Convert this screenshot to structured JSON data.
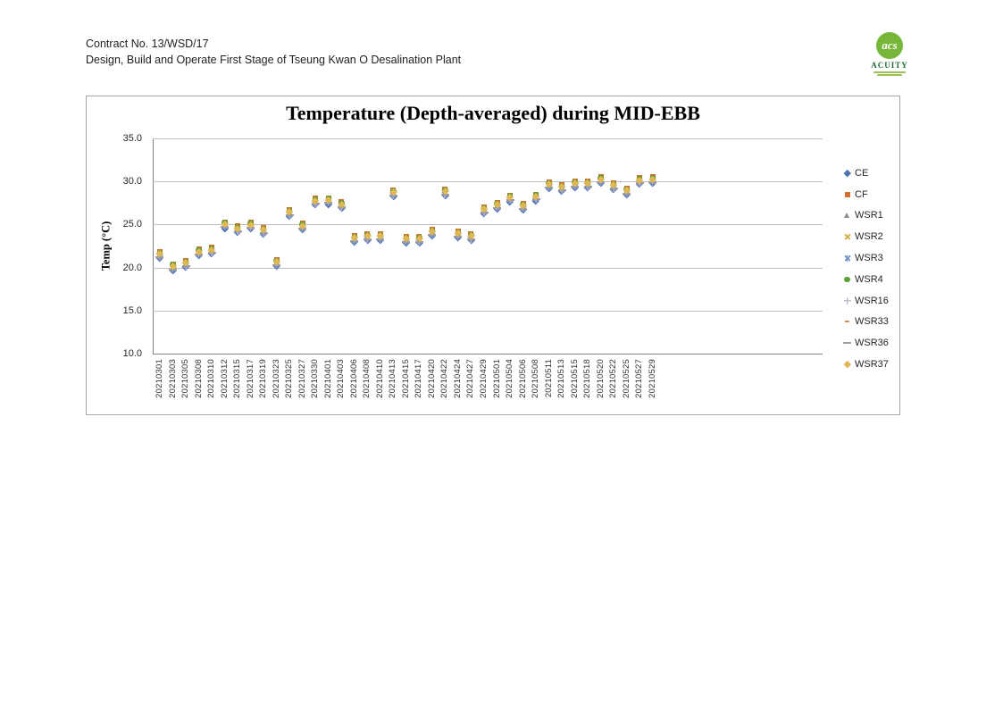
{
  "header": {
    "contract_no": "Contract No. 13/WSD/17",
    "project_title": "Design, Build and Operate First Stage of Tseung Kwan O Desalination Plant"
  },
  "logo": {
    "name": "ACUITY",
    "monogram": "acs",
    "circle_color": "#76b639",
    "name_color": "#1e6b38"
  },
  "chart_data": {
    "type": "scatter",
    "title": "Temperature (Depth-averaged) during MID-EBB",
    "ylabel": "Temp (°C)",
    "ylim": [
      10.0,
      35.0
    ],
    "ytick_labels": [
      "35.0",
      "30.0",
      "25.0",
      "20.0",
      "15.0",
      "10.0"
    ],
    "grid": true,
    "legend_position": "right",
    "categories": [
      "20210301",
      "20210303",
      "20210305",
      "20210308",
      "20210310",
      "20210312",
      "20210315",
      "20210317",
      "20210319",
      "20210323",
      "20210325",
      "20210327",
      "20210330",
      "20210401",
      "20210403",
      "20210406",
      "20210408",
      "20210410",
      "20210413",
      "20210415",
      "20210417",
      "20210420",
      "20210422",
      "20210424",
      "20210427",
      "20210429",
      "20210501",
      "20210504",
      "20210506",
      "20210508",
      "20210511",
      "20210513",
      "20210515",
      "20210518",
      "20210520",
      "20210522",
      "20210525",
      "20210527",
      "20210529"
    ],
    "series": [
      {
        "name": "CE",
        "marker": "diamond",
        "color": "#4a72b2",
        "values": [
          21.1,
          19.7,
          20.1,
          21.4,
          21.6,
          24.6,
          24.1,
          24.5,
          23.9,
          20.2,
          26.0,
          24.4,
          27.3,
          27.4,
          26.9,
          23.0,
          23.2,
          23.2,
          28.3,
          22.9,
          22.9,
          23.7,
          28.4,
          23.5,
          23.2,
          26.3,
          26.8,
          27.7,
          26.7,
          27.8,
          29.2,
          28.9,
          29.3,
          29.3,
          29.8,
          29.1,
          28.5,
          29.7,
          29.8
        ]
      },
      {
        "name": "CF",
        "marker": "square",
        "color": "#d2712e",
        "values": [
          21.8,
          20.4,
          20.8,
          22.1,
          22.3,
          25.3,
          24.8,
          25.2,
          24.6,
          20.9,
          26.7,
          25.1,
          28.0,
          28.1,
          27.6,
          23.7,
          23.9,
          23.9,
          29.0,
          23.6,
          23.6,
          24.4,
          29.1,
          24.2,
          23.9,
          27.0,
          27.5,
          28.4,
          27.4,
          28.5,
          29.9,
          29.6,
          30.0,
          30.0,
          30.5,
          29.8,
          29.2,
          30.4,
          30.5
        ]
      },
      {
        "name": "WSR1",
        "marker": "triangle",
        "color": "#8a8a8a",
        "values": [
          21.4,
          20.0,
          20.4,
          21.7,
          21.9,
          24.9,
          24.4,
          24.8,
          24.2,
          20.5,
          26.3,
          24.7,
          27.6,
          27.7,
          27.2,
          23.3,
          23.5,
          23.5,
          28.6,
          23.2,
          23.2,
          24.0,
          28.7,
          23.8,
          23.5,
          26.6,
          27.1,
          28.0,
          27.0,
          28.1,
          29.5,
          29.2,
          29.6,
          29.6,
          30.1,
          29.4,
          28.8,
          30.0,
          30.1
        ]
      },
      {
        "name": "WSR2",
        "marker": "x",
        "color": "#d4b24a",
        "values": [
          21.5,
          20.1,
          20.5,
          21.8,
          22.0,
          25.0,
          24.5,
          24.9,
          24.3,
          20.6,
          26.4,
          24.8,
          27.7,
          27.8,
          27.3,
          23.4,
          23.6,
          23.6,
          28.7,
          23.3,
          23.3,
          24.1,
          28.8,
          23.9,
          23.6,
          26.7,
          27.2,
          28.1,
          27.1,
          28.2,
          29.6,
          29.3,
          29.7,
          29.7,
          30.2,
          29.5,
          28.9,
          30.1,
          30.2
        ]
      },
      {
        "name": "WSR3",
        "marker": "star",
        "color": "#7296c8",
        "values": [
          21.3,
          19.9,
          20.3,
          21.6,
          21.8,
          24.8,
          24.3,
          24.7,
          24.1,
          20.4,
          26.2,
          24.6,
          27.5,
          27.6,
          27.1,
          23.2,
          23.4,
          23.4,
          28.5,
          23.1,
          23.1,
          23.9,
          28.6,
          23.7,
          23.4,
          26.5,
          27.0,
          27.9,
          26.9,
          28.0,
          29.4,
          29.1,
          29.5,
          29.5,
          30.0,
          29.3,
          28.7,
          29.9,
          30.0
        ]
      },
      {
        "name": "WSR4",
        "marker": "circle",
        "color": "#5ba136",
        "values": [
          21.7,
          20.3,
          20.7,
          22.0,
          22.2,
          25.2,
          24.7,
          25.1,
          24.5,
          20.8,
          26.6,
          25.0,
          27.9,
          28.0,
          27.5,
          23.6,
          23.8,
          23.8,
          28.9,
          23.5,
          23.5,
          24.3,
          29.0,
          24.1,
          23.8,
          26.9,
          27.4,
          28.3,
          27.3,
          28.4,
          29.8,
          29.5,
          29.9,
          29.9,
          30.4,
          29.7,
          29.1,
          30.3,
          30.4
        ]
      },
      {
        "name": "WSR16",
        "marker": "plus",
        "color": "#b3a6ce",
        "values": [
          21.2,
          19.8,
          20.2,
          21.5,
          21.7,
          24.7,
          24.2,
          24.6,
          24.0,
          20.3,
          26.1,
          24.5,
          27.4,
          27.5,
          27.0,
          23.1,
          23.3,
          23.3,
          28.4,
          23.0,
          23.0,
          23.8,
          28.5,
          23.6,
          23.3,
          26.4,
          26.9,
          27.8,
          26.8,
          27.9,
          29.3,
          29.0,
          29.4,
          29.4,
          29.9,
          29.2,
          28.6,
          29.8,
          29.9
        ]
      },
      {
        "name": "WSR33",
        "marker": "dash-short",
        "color": "#d89060",
        "values": [
          21.6,
          20.2,
          20.6,
          21.9,
          22.1,
          25.1,
          24.6,
          25.0,
          24.4,
          20.7,
          26.5,
          24.9,
          27.8,
          27.9,
          27.4,
          23.5,
          23.7,
          23.7,
          28.8,
          23.4,
          23.4,
          24.2,
          28.9,
          24.0,
          23.7,
          26.8,
          27.3,
          28.2,
          27.2,
          28.3,
          29.7,
          29.4,
          29.8,
          29.8,
          30.3,
          29.6,
          29.0,
          30.2,
          30.3
        ]
      },
      {
        "name": "WSR36",
        "marker": "dash-long",
        "color": "#9c9c9c",
        "values": [
          21.2,
          19.8,
          20.2,
          21.5,
          21.7,
          24.7,
          24.2,
          24.6,
          24.0,
          20.3,
          26.1,
          24.5,
          27.4,
          27.5,
          27.0,
          23.1,
          23.3,
          23.3,
          28.4,
          23.0,
          23.0,
          23.8,
          28.5,
          23.6,
          23.3,
          26.4,
          26.9,
          27.8,
          26.8,
          27.9,
          29.3,
          29.0,
          29.4,
          29.4,
          29.9,
          29.2,
          28.6,
          29.8,
          29.9
        ]
      },
      {
        "name": "WSR37",
        "marker": "diamond",
        "color": "#e0b752",
        "values": [
          21.6,
          20.2,
          20.6,
          21.9,
          22.1,
          25.1,
          24.6,
          25.0,
          24.4,
          20.7,
          26.5,
          24.9,
          27.8,
          27.9,
          27.4,
          23.5,
          23.7,
          23.7,
          28.8,
          23.4,
          23.4,
          24.2,
          28.9,
          24.0,
          23.7,
          26.8,
          27.3,
          28.2,
          27.2,
          28.3,
          29.7,
          29.4,
          29.8,
          29.8,
          30.3,
          29.6,
          29.0,
          30.2,
          30.3
        ]
      }
    ]
  }
}
